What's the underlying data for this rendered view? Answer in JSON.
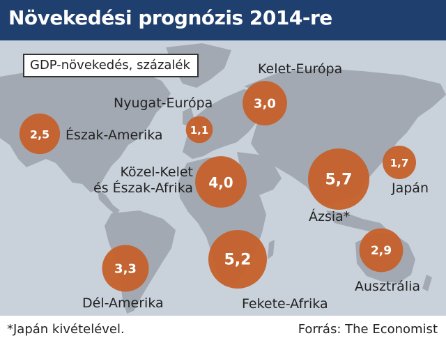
{
  "header": {
    "title": "Növekedési prognózis 2014-re"
  },
  "legend": {
    "text": "GDP-növekedés, százalék"
  },
  "colors": {
    "header_bg": "#1f3f6e",
    "bubble": "#c4622d",
    "land": "#a2a9b2",
    "ocean": "#c9d1da"
  },
  "chart_data": {
    "type": "bubble-map",
    "title": "Növekedési prognózis 2014-re",
    "measure": "GDP-növekedés, százalék",
    "regions": [
      {
        "name": "Észak-Amerika",
        "value": 2.5,
        "value_label": "2,5"
      },
      {
        "name": "Nyugat-Európa",
        "value": 1.1,
        "value_label": "1,1"
      },
      {
        "name": "Kelet-Európa",
        "value": 3.0,
        "value_label": "3,0"
      },
      {
        "name": "Közel-Kelet\nés Észak-Afrika",
        "value": 4.0,
        "value_label": "4,0"
      },
      {
        "name": "Ázsia*",
        "value": 5.7,
        "value_label": "5,7"
      },
      {
        "name": "Japán",
        "value": 1.7,
        "value_label": "1,7"
      },
      {
        "name": "Dél-Amerika",
        "value": 3.3,
        "value_label": "3,3"
      },
      {
        "name": "Fekete-Afrika",
        "value": 5.2,
        "value_label": "5,2"
      },
      {
        "name": "Ausztrália",
        "value": 2.9,
        "value_label": "2,9"
      }
    ]
  },
  "footer": {
    "footnote": "*Japán kivételével.",
    "source": "Forrás: The Economist"
  }
}
